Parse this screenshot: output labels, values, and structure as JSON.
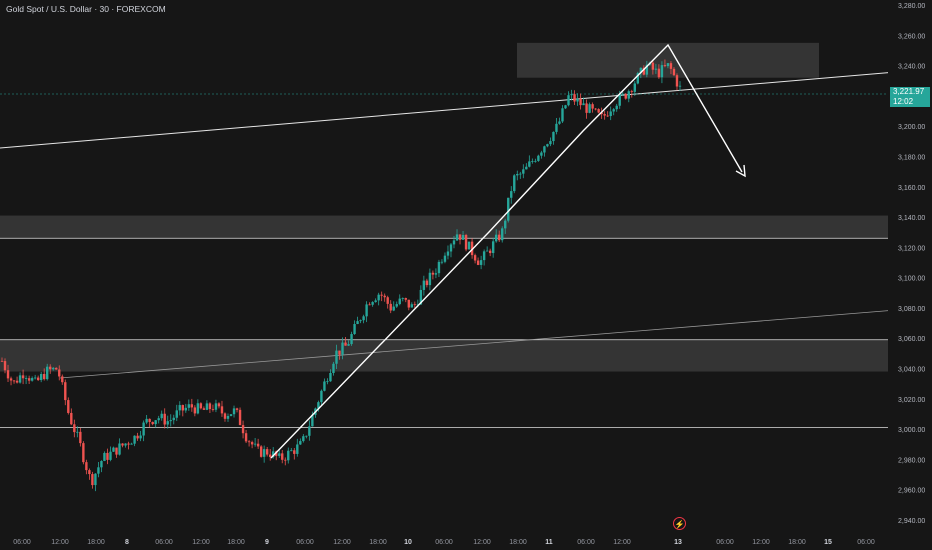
{
  "header": {
    "title": "Gold Spot / U.S. Dollar · 30 · FOREXCOM"
  },
  "last_price": {
    "value": "3,221.97",
    "countdown": "12:02"
  },
  "icons": {
    "event_marker": "lightning-bolt-icon"
  },
  "colors": {
    "up": "#26a69a",
    "down": "#ef5350",
    "background": "#161616",
    "zone": "#3a3a3a",
    "line": "#ffffff"
  },
  "chart_data": {
    "type": "candlestick",
    "title": "Gold Spot / U.S. Dollar · 30 · FOREXCOM",
    "ylim": [
      2940,
      3280
    ],
    "y_ticks": [
      "3,280.00",
      "3,260.00",
      "3,240.00",
      "3,220.00",
      "3,200.00",
      "3,180.00",
      "3,160.00",
      "3,140.00",
      "3,120.00",
      "3,100.00",
      "3,080.00",
      "3,060.00",
      "3,040.00",
      "3,020.00",
      "3,000.00",
      "2,980.00",
      "2,960.00",
      "2,940.00"
    ],
    "x_ticks": [
      "06:00",
      "12:00",
      "18:00",
      "8",
      "06:00",
      "12:00",
      "18:00",
      "9",
      "06:00",
      "12:00",
      "18:00",
      "10",
      "06:00",
      "12:00",
      "18:00",
      "11",
      "06:00",
      "12:00",
      "13",
      "06:00",
      "12:00",
      "18:00",
      "15",
      "06:00"
    ],
    "grid": false,
    "zones": [
      {
        "from": 3232,
        "to": 3255
      },
      {
        "from": 3126,
        "to": 3141
      },
      {
        "from": 3038,
        "to": 3059
      }
    ],
    "horizontal_lines": [
      3126,
      3059,
      3001
    ],
    "close_path": [
      3045,
      3030,
      3038,
      3030,
      3038,
      3040,
      3010,
      2990,
      2965,
      2980,
      2985,
      2990,
      2995,
      3005,
      3008,
      3005,
      3012,
      3015,
      3012,
      3015,
      3010,
      3012,
      2995,
      2985,
      2985,
      2980,
      2985,
      2990,
      3010,
      3030,
      3050,
      3055,
      3070,
      3085,
      3090,
      3080,
      3085,
      3080,
      3095,
      3105,
      3120,
      3130,
      3120,
      3110,
      3120,
      3130,
      3165,
      3170,
      3180,
      3190,
      3200,
      3220,
      3215,
      3210,
      3205,
      3215,
      3220,
      3230,
      3240,
      3235,
      3240,
      3225
    ]
  }
}
